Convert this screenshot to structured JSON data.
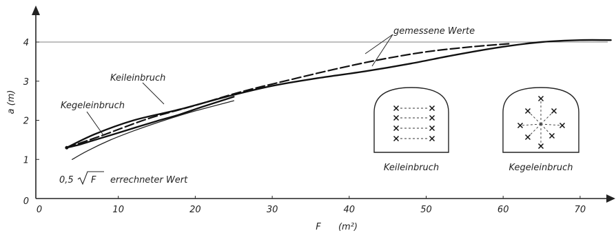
{
  "chart_data": {
    "type": "line",
    "xlabel": "F",
    "xunit": "(m²)",
    "ylabel": "a (m)",
    "x_ticks": [
      0,
      10,
      20,
      30,
      40,
      50,
      60,
      70
    ],
    "y_ticks": [
      0,
      1,
      2,
      3,
      4
    ],
    "x_tick_labels": [
      "0",
      "10",
      "20",
      "30",
      "40",
      "50",
      "60",
      "70"
    ],
    "y_tick_labels": [
      "0",
      "1",
      "2",
      "3",
      "4"
    ],
    "xlim": [
      0,
      75
    ],
    "ylim": [
      0,
      4.8
    ],
    "reference_line_y": 4,
    "series": [
      {
        "name": "Keileinbruch",
        "style": "solid",
        "x": [
          3.3,
          7,
          12,
          18,
          24,
          30,
          36,
          42,
          48,
          54,
          60,
          65,
          70,
          74
        ],
        "y": [
          1.3,
          1.65,
          2.0,
          2.28,
          2.6,
          2.88,
          3.08,
          3.25,
          3.45,
          3.68,
          3.88,
          4.0,
          4.05,
          4.05
        ]
      },
      {
        "name": "Kegeleinbruch",
        "style": "solid",
        "x": [
          3.3,
          5,
          7,
          9,
          12,
          15,
          18,
          21,
          25
        ],
        "y": [
          1.3,
          1.38,
          1.5,
          1.62,
          1.8,
          1.98,
          2.15,
          2.35,
          2.6
        ]
      },
      {
        "name": "gemessene Werte",
        "style": "dashed",
        "x": [
          3.3,
          8,
          14,
          20,
          26,
          32,
          38,
          44,
          50,
          56,
          61
        ],
        "y": [
          1.3,
          1.62,
          2.05,
          2.38,
          2.73,
          3.02,
          3.3,
          3.55,
          3.75,
          3.88,
          3.96
        ]
      },
      {
        "name": "0,5 √F",
        "style": "thin",
        "x": [
          4,
          6,
          9,
          12,
          16,
          20,
          25
        ],
        "y": [
          1.0,
          1.22,
          1.5,
          1.73,
          2.0,
          2.24,
          2.5
        ]
      }
    ],
    "annotations": {
      "measured": "gemessene Werte",
      "wedge": "Keileinbruch",
      "cone": "Kegeleinbruch",
      "formula_coef": "0,5",
      "formula_var": "F",
      "calculated": "errechneter Wert",
      "inset_left": "Keileinbruch",
      "inset_right": "Kegeleinbruch"
    }
  }
}
